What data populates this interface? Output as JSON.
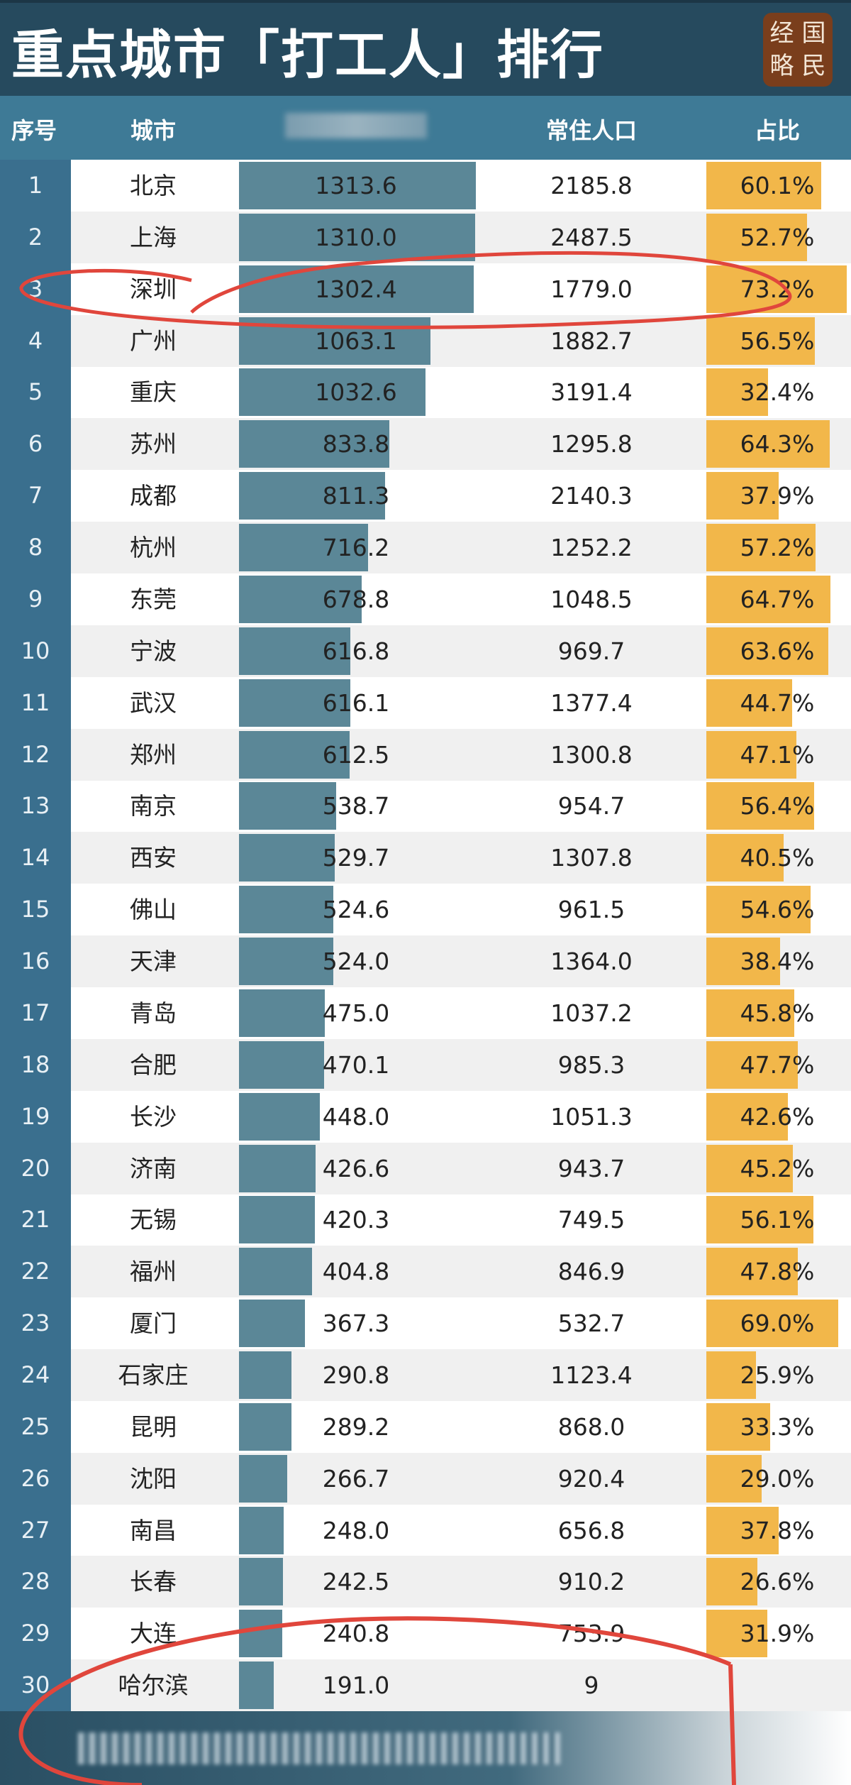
{
  "title": "重点城市「打工人」排行",
  "logo_text": [
    "经",
    "国",
    "略",
    "民"
  ],
  "header": {
    "index": "序号",
    "city": "城市",
    "col3": "",
    "population": "常住人口",
    "ratio": "占比"
  },
  "colors": {
    "title_bg": "#264a5e",
    "header_bg": "#3e7a96",
    "bar": "#5b8797",
    "ratio_bar": "#f2b74a",
    "annotation": "#e0463c"
  },
  "rows": [
    {
      "i": "1",
      "city": "北京",
      "v": "1313.6",
      "pop": "2185.8",
      "r": "60.1%"
    },
    {
      "i": "2",
      "city": "上海",
      "v": "1310.0",
      "pop": "2487.5",
      "r": "52.7%"
    },
    {
      "i": "3",
      "city": "深圳",
      "v": "1302.4",
      "pop": "1779.0",
      "r": "73.2%"
    },
    {
      "i": "4",
      "city": "广州",
      "v": "1063.1",
      "pop": "1882.7",
      "r": "56.5%"
    },
    {
      "i": "5",
      "city": "重庆",
      "v": "1032.6",
      "pop": "3191.4",
      "r": "32.4%"
    },
    {
      "i": "6",
      "city": "苏州",
      "v": "833.8",
      "pop": "1295.8",
      "r": "64.3%"
    },
    {
      "i": "7",
      "city": "成都",
      "v": "811.3",
      "pop": "2140.3",
      "r": "37.9%"
    },
    {
      "i": "8",
      "city": "杭州",
      "v": "716.2",
      "pop": "1252.2",
      "r": "57.2%"
    },
    {
      "i": "9",
      "city": "东莞",
      "v": "678.8",
      "pop": "1048.5",
      "r": "64.7%"
    },
    {
      "i": "10",
      "city": "宁波",
      "v": "616.8",
      "pop": "969.7",
      "r": "63.6%"
    },
    {
      "i": "11",
      "city": "武汉",
      "v": "616.1",
      "pop": "1377.4",
      "r": "44.7%"
    },
    {
      "i": "12",
      "city": "郑州",
      "v": "612.5",
      "pop": "1300.8",
      "r": "47.1%"
    },
    {
      "i": "13",
      "city": "南京",
      "v": "538.7",
      "pop": "954.7",
      "r": "56.4%"
    },
    {
      "i": "14",
      "city": "西安",
      "v": "529.7",
      "pop": "1307.8",
      "r": "40.5%"
    },
    {
      "i": "15",
      "city": "佛山",
      "v": "524.6",
      "pop": "961.5",
      "r": "54.6%"
    },
    {
      "i": "16",
      "city": "天津",
      "v": "524.0",
      "pop": "1364.0",
      "r": "38.4%"
    },
    {
      "i": "17",
      "city": "青岛",
      "v": "475.0",
      "pop": "1037.2",
      "r": "45.8%"
    },
    {
      "i": "18",
      "city": "合肥",
      "v": "470.1",
      "pop": "985.3",
      "r": "47.7%"
    },
    {
      "i": "19",
      "city": "长沙",
      "v": "448.0",
      "pop": "1051.3",
      "r": "42.6%"
    },
    {
      "i": "20",
      "city": "济南",
      "v": "426.6",
      "pop": "943.7",
      "r": "45.2%"
    },
    {
      "i": "21",
      "city": "无锡",
      "v": "420.3",
      "pop": "749.5",
      "r": "56.1%"
    },
    {
      "i": "22",
      "city": "福州",
      "v": "404.8",
      "pop": "846.9",
      "r": "47.8%"
    },
    {
      "i": "23",
      "city": "厦门",
      "v": "367.3",
      "pop": "532.7",
      "r": "69.0%"
    },
    {
      "i": "24",
      "city": "石家庄",
      "v": "290.8",
      "pop": "1123.4",
      "r": "25.9%"
    },
    {
      "i": "25",
      "city": "昆明",
      "v": "289.2",
      "pop": "868.0",
      "r": "33.3%"
    },
    {
      "i": "26",
      "city": "沈阳",
      "v": "266.7",
      "pop": "920.4",
      "r": "29.0%"
    },
    {
      "i": "27",
      "city": "南昌",
      "v": "248.0",
      "pop": "656.8",
      "r": "37.8%"
    },
    {
      "i": "28",
      "city": "长春",
      "v": "242.5",
      "pop": "910.2",
      "r": "26.6%"
    },
    {
      "i": "29",
      "city": "大连",
      "v": "240.8",
      "pop": "753.9",
      "r": "31.9%"
    },
    {
      "i": "30",
      "city": "哈尔滨",
      "v": "191.0",
      "pop": "9",
      "r": ""
    }
  ]
}
